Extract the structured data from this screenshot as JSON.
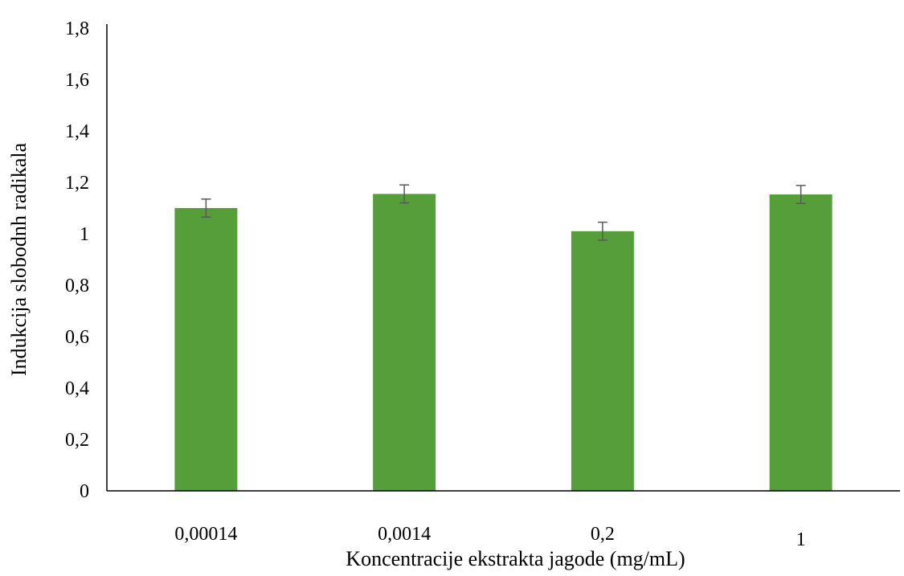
{
  "chart_data": {
    "type": "bar",
    "title": "",
    "xlabel": "Koncentracije ekstrakta jagode (mg/mL)",
    "ylabel": "Indukcija slobodnh radikala",
    "categories": [
      "0,00014",
      "0,0014",
      "0,2",
      "1"
    ],
    "values": [
      1.1,
      1.155,
      1.01,
      1.153
    ],
    "error": [
      0.035,
      0.035,
      0.035,
      0.035
    ],
    "ylim": [
      0,
      1.8
    ],
    "yticks": [
      "0",
      "0,2",
      "0,4",
      "0,6",
      "0,8",
      "1",
      "1,2",
      "1,4",
      "1,6",
      "1,8"
    ],
    "grid": false,
    "legend": "none",
    "bar_color": "#559e3a",
    "error_bar_color": "#595959"
  }
}
